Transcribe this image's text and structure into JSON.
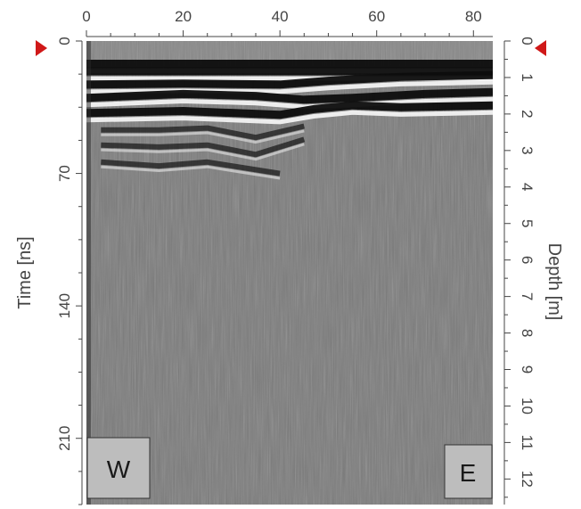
{
  "chart_data": {
    "type": "heatmap",
    "title": "",
    "x_axis": {
      "position": "top",
      "range": [
        0,
        84
      ],
      "ticks": [
        0,
        20,
        40,
        60,
        80
      ],
      "label": ""
    },
    "y_axis_left": {
      "label": "Time [ns]",
      "range": [
        0,
        245
      ],
      "ticks": [
        0,
        70,
        140,
        210
      ]
    },
    "y_axis_right": {
      "label": "Depth [m]",
      "range": [
        0,
        12.7
      ],
      "ticks": [
        0,
        1,
        2,
        3,
        4,
        5,
        6,
        7,
        8,
        9,
        10,
        11,
        12
      ]
    },
    "reflectors_time_ns": [
      [
        [
          0,
          12
        ],
        [
          30,
          12
        ],
        [
          60,
          12
        ],
        [
          84,
          12
        ]
      ],
      [
        [
          0,
          16
        ],
        [
          30,
          16
        ],
        [
          60,
          16
        ],
        [
          84,
          16
        ]
      ],
      [
        [
          0,
          23
        ],
        [
          20,
          22.5
        ],
        [
          40,
          23
        ],
        [
          50,
          21
        ],
        [
          65,
          19
        ],
        [
          84,
          18
        ]
      ],
      [
        [
          0,
          30
        ],
        [
          20,
          28
        ],
        [
          35,
          29
        ],
        [
          45,
          31
        ],
        [
          55,
          30
        ],
        [
          70,
          28
        ],
        [
          84,
          27
        ]
      ],
      [
        [
          0,
          38
        ],
        [
          20,
          37
        ],
        [
          40,
          39
        ],
        [
          47,
          36
        ],
        [
          55,
          34
        ],
        [
          65,
          35
        ],
        [
          84,
          34
        ]
      ],
      [
        [
          3,
          47
        ],
        [
          15,
          47
        ],
        [
          25,
          46
        ],
        [
          35,
          51
        ],
        [
          45,
          45
        ]
      ],
      [
        [
          3,
          55
        ],
        [
          15,
          56
        ],
        [
          25,
          55
        ],
        [
          35,
          60
        ],
        [
          45,
          52
        ]
      ],
      [
        [
          3,
          64
        ],
        [
          15,
          66
        ],
        [
          25,
          64
        ],
        [
          40,
          70
        ]
      ]
    ],
    "colormap": "grayscale",
    "grid": false,
    "legend": "none"
  },
  "markers": {
    "left": "red-triangle-marker",
    "right": "red-triangle-marker"
  },
  "labels": {
    "west": "W",
    "east": "E"
  },
  "colors": {
    "background": "#7a7a7a",
    "marker": "#d01818",
    "axis": "#444444",
    "label_box": "#bdbdbd"
  }
}
